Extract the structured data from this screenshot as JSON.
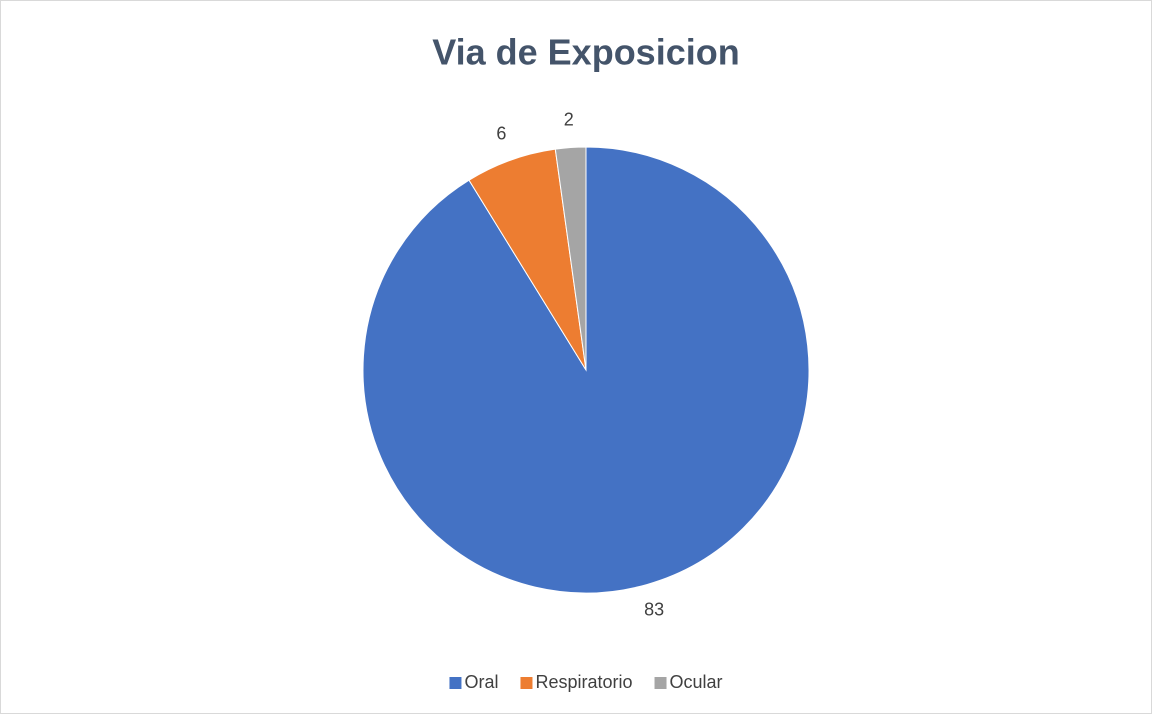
{
  "chart_data": {
    "type": "pie",
    "title": "Via de Exposicion",
    "categories": [
      "Oral",
      "Respiratorio",
      "Ocular"
    ],
    "values": [
      83,
      6,
      2
    ],
    "colors": [
      "#4472c4",
      "#ed7d31",
      "#a5a5a5"
    ],
    "legend": "bottom"
  }
}
